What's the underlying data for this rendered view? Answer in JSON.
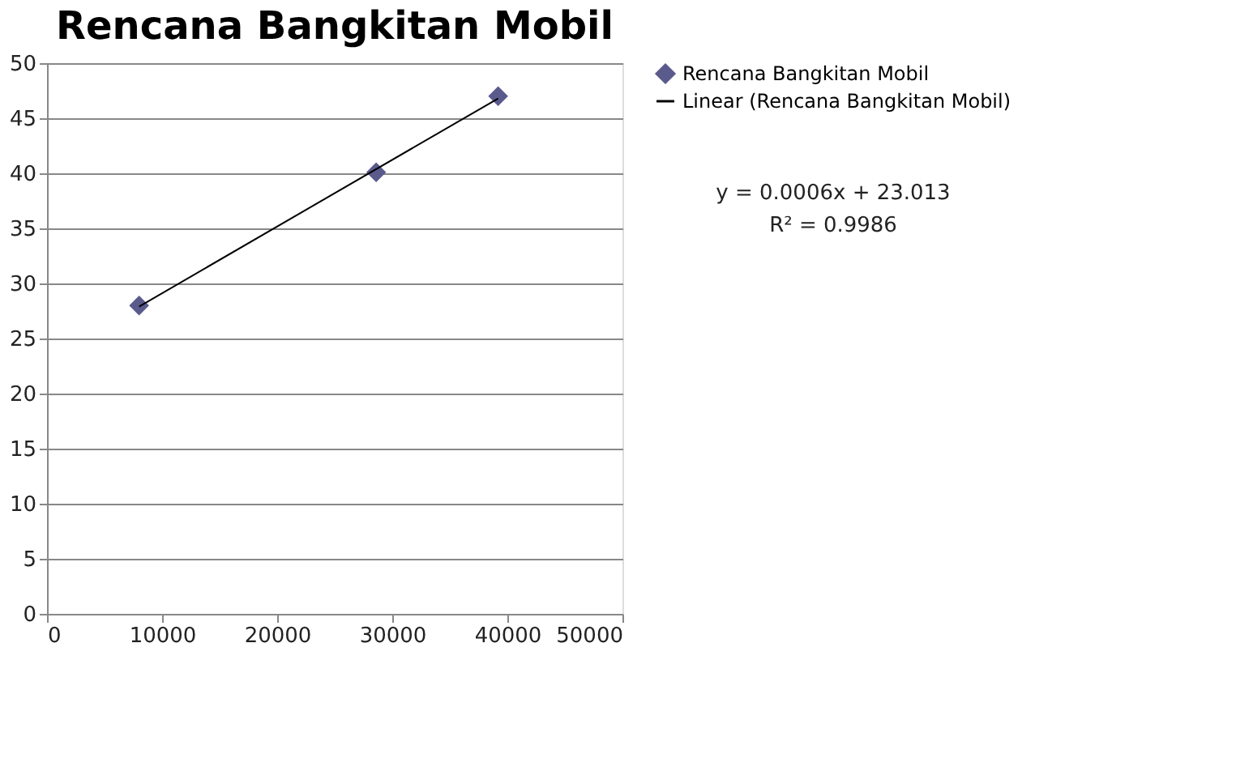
{
  "chart_data": {
    "type": "scatter",
    "title": "Rencana Bangkitan Mobil",
    "x": [
      8000,
      28600,
      39200
    ],
    "series": [
      {
        "name": "Rencana Bangkitan Mobil",
        "type": "scatter",
        "color": "#5a5a8c",
        "marker": "diamond",
        "values": [
          28.0,
          40.1,
          47.0
        ]
      },
      {
        "name": "Linear (Rencana Bangkitan Mobil)",
        "type": "line",
        "color": "#000000",
        "marker": "none",
        "x": [
          8000,
          39200
        ],
        "values": [
          27.9,
          46.8
        ]
      }
    ],
    "annotations": [
      "y = 0.0006x + 23.013",
      "R² = 0.9986"
    ],
    "xlim": [
      0,
      50000
    ],
    "xticks": [
      0,
      10000,
      20000,
      30000,
      40000,
      50000
    ],
    "ylim": [
      0,
      50
    ],
    "yticks": [
      0,
      5,
      10,
      15,
      20,
      25,
      30,
      35,
      40,
      45,
      50
    ],
    "grid": "y",
    "legend": "right"
  }
}
